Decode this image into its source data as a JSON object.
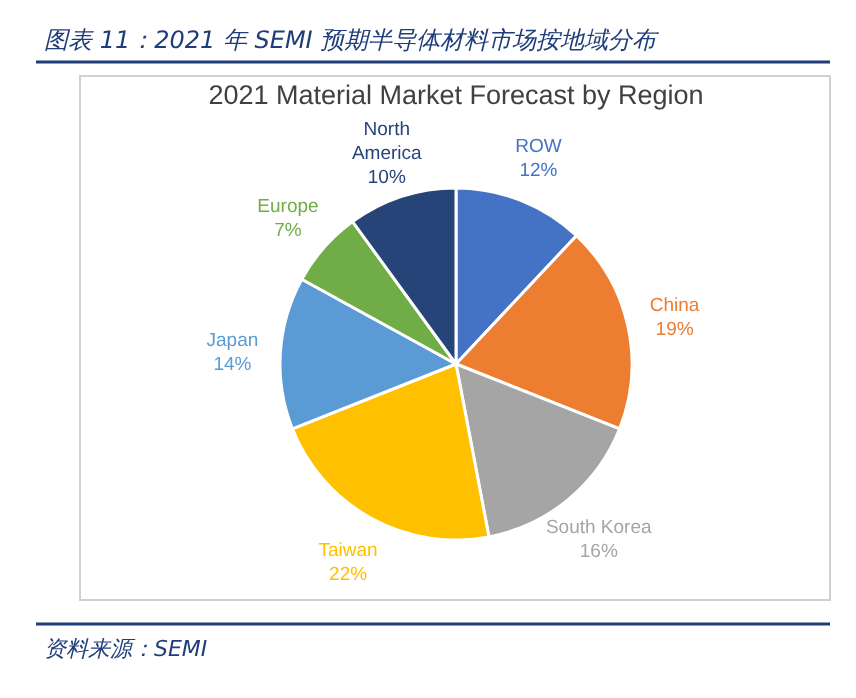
{
  "chart_data": {
    "type": "pie",
    "title": "图表 11：2021 年 SEMI 预期半导体材料市场按地域分布",
    "subtitle": "2021 Material Market Forecast by Region",
    "categories": [
      "ROW",
      "China",
      "South Korea",
      "Taiwan",
      "Japan",
      "Europe",
      "North America"
    ],
    "values": [
      12,
      19,
      16,
      22,
      14,
      7,
      10
    ],
    "colors": [
      "#4472c4",
      "#ed7d31",
      "#a5a5a5",
      "#ffc000",
      "#5b9bd5",
      "#70ad47",
      "#264478"
    ],
    "value_labels": [
      "12%",
      "19%",
      "16%",
      "22%",
      "14%",
      "7%",
      "10%"
    ],
    "annotations": [
      "资料来源：SEMI"
    ]
  }
}
